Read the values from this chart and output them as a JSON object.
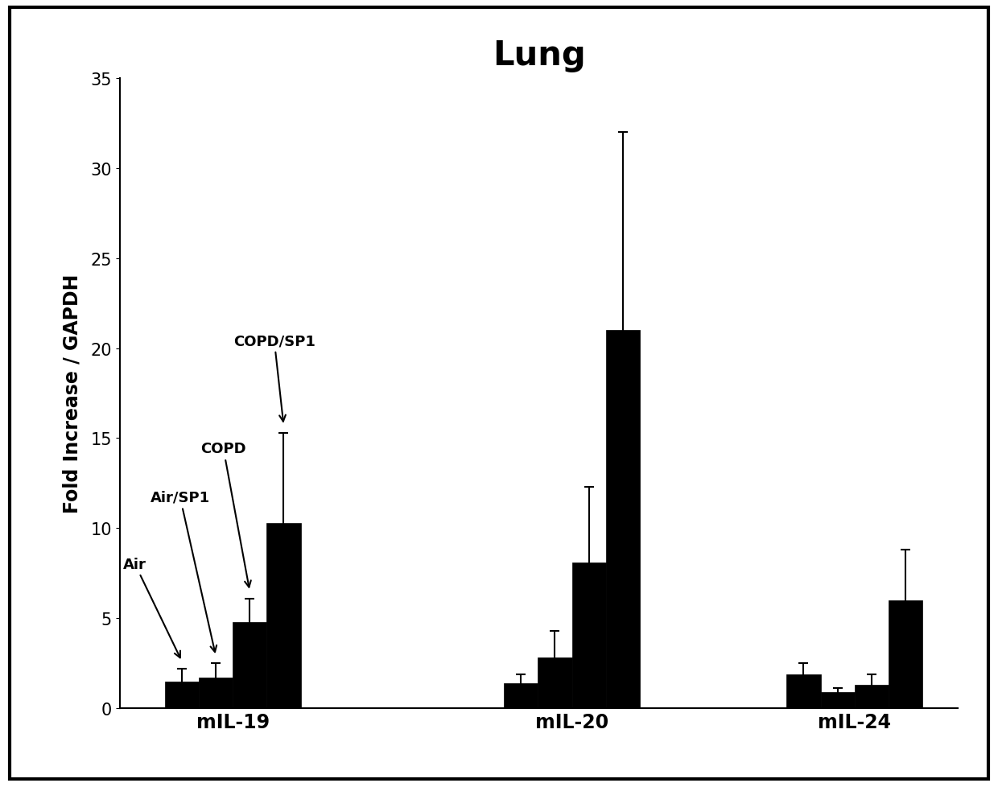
{
  "title": "Lung",
  "ylabel": "Fold Increase / GAPDH",
  "xlabel_groups": [
    "mIL-19",
    "mIL-20",
    "mIL-24"
  ],
  "conditions": [
    "Air",
    "Air/SP1",
    "COPD",
    "COPD/SP1"
  ],
  "bar_values": {
    "mIL-19": [
      1.5,
      1.7,
      4.8,
      10.3
    ],
    "mIL-20": [
      1.4,
      2.8,
      8.1,
      21.0
    ],
    "mIL-24": [
      1.9,
      0.9,
      1.3,
      6.0
    ]
  },
  "bar_errors": {
    "mIL-19": [
      0.7,
      0.8,
      1.3,
      5.0
    ],
    "mIL-20": [
      0.5,
      1.5,
      4.2,
      11.0
    ],
    "mIL-24": [
      0.6,
      0.2,
      0.6,
      2.8
    ]
  },
  "ylim": [
    0,
    35
  ],
  "yticks": [
    0,
    5,
    10,
    15,
    20,
    25,
    30,
    35
  ],
  "bar_color": "#000000",
  "bar_width": 0.18,
  "annotation_fontsize": 13,
  "title_fontsize": 30,
  "axis_label_fontsize": 17,
  "tick_fontsize": 15,
  "group_label_fontsize": 17,
  "background_color": "#ffffff"
}
